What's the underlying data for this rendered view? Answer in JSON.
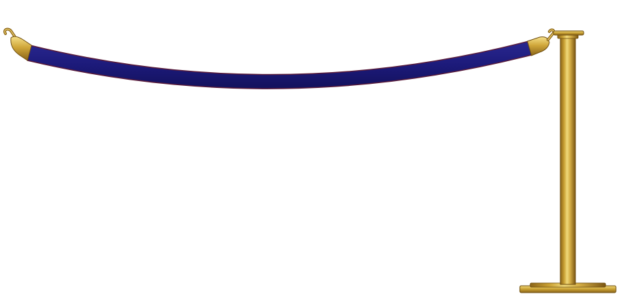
{
  "scene": {
    "background_color": "#ffffff",
    "rope_color": "#1c1a7a",
    "rope_edge_color": "#5a1c3a",
    "brass_color": "#c9a033",
    "brass_highlight_color": "#f0d97a",
    "brass_shadow_color": "#8a6418",
    "elements": [
      "velvet-rope",
      "left-rope-end-clip",
      "right-rope-end-clip",
      "stanchion-post"
    ]
  }
}
